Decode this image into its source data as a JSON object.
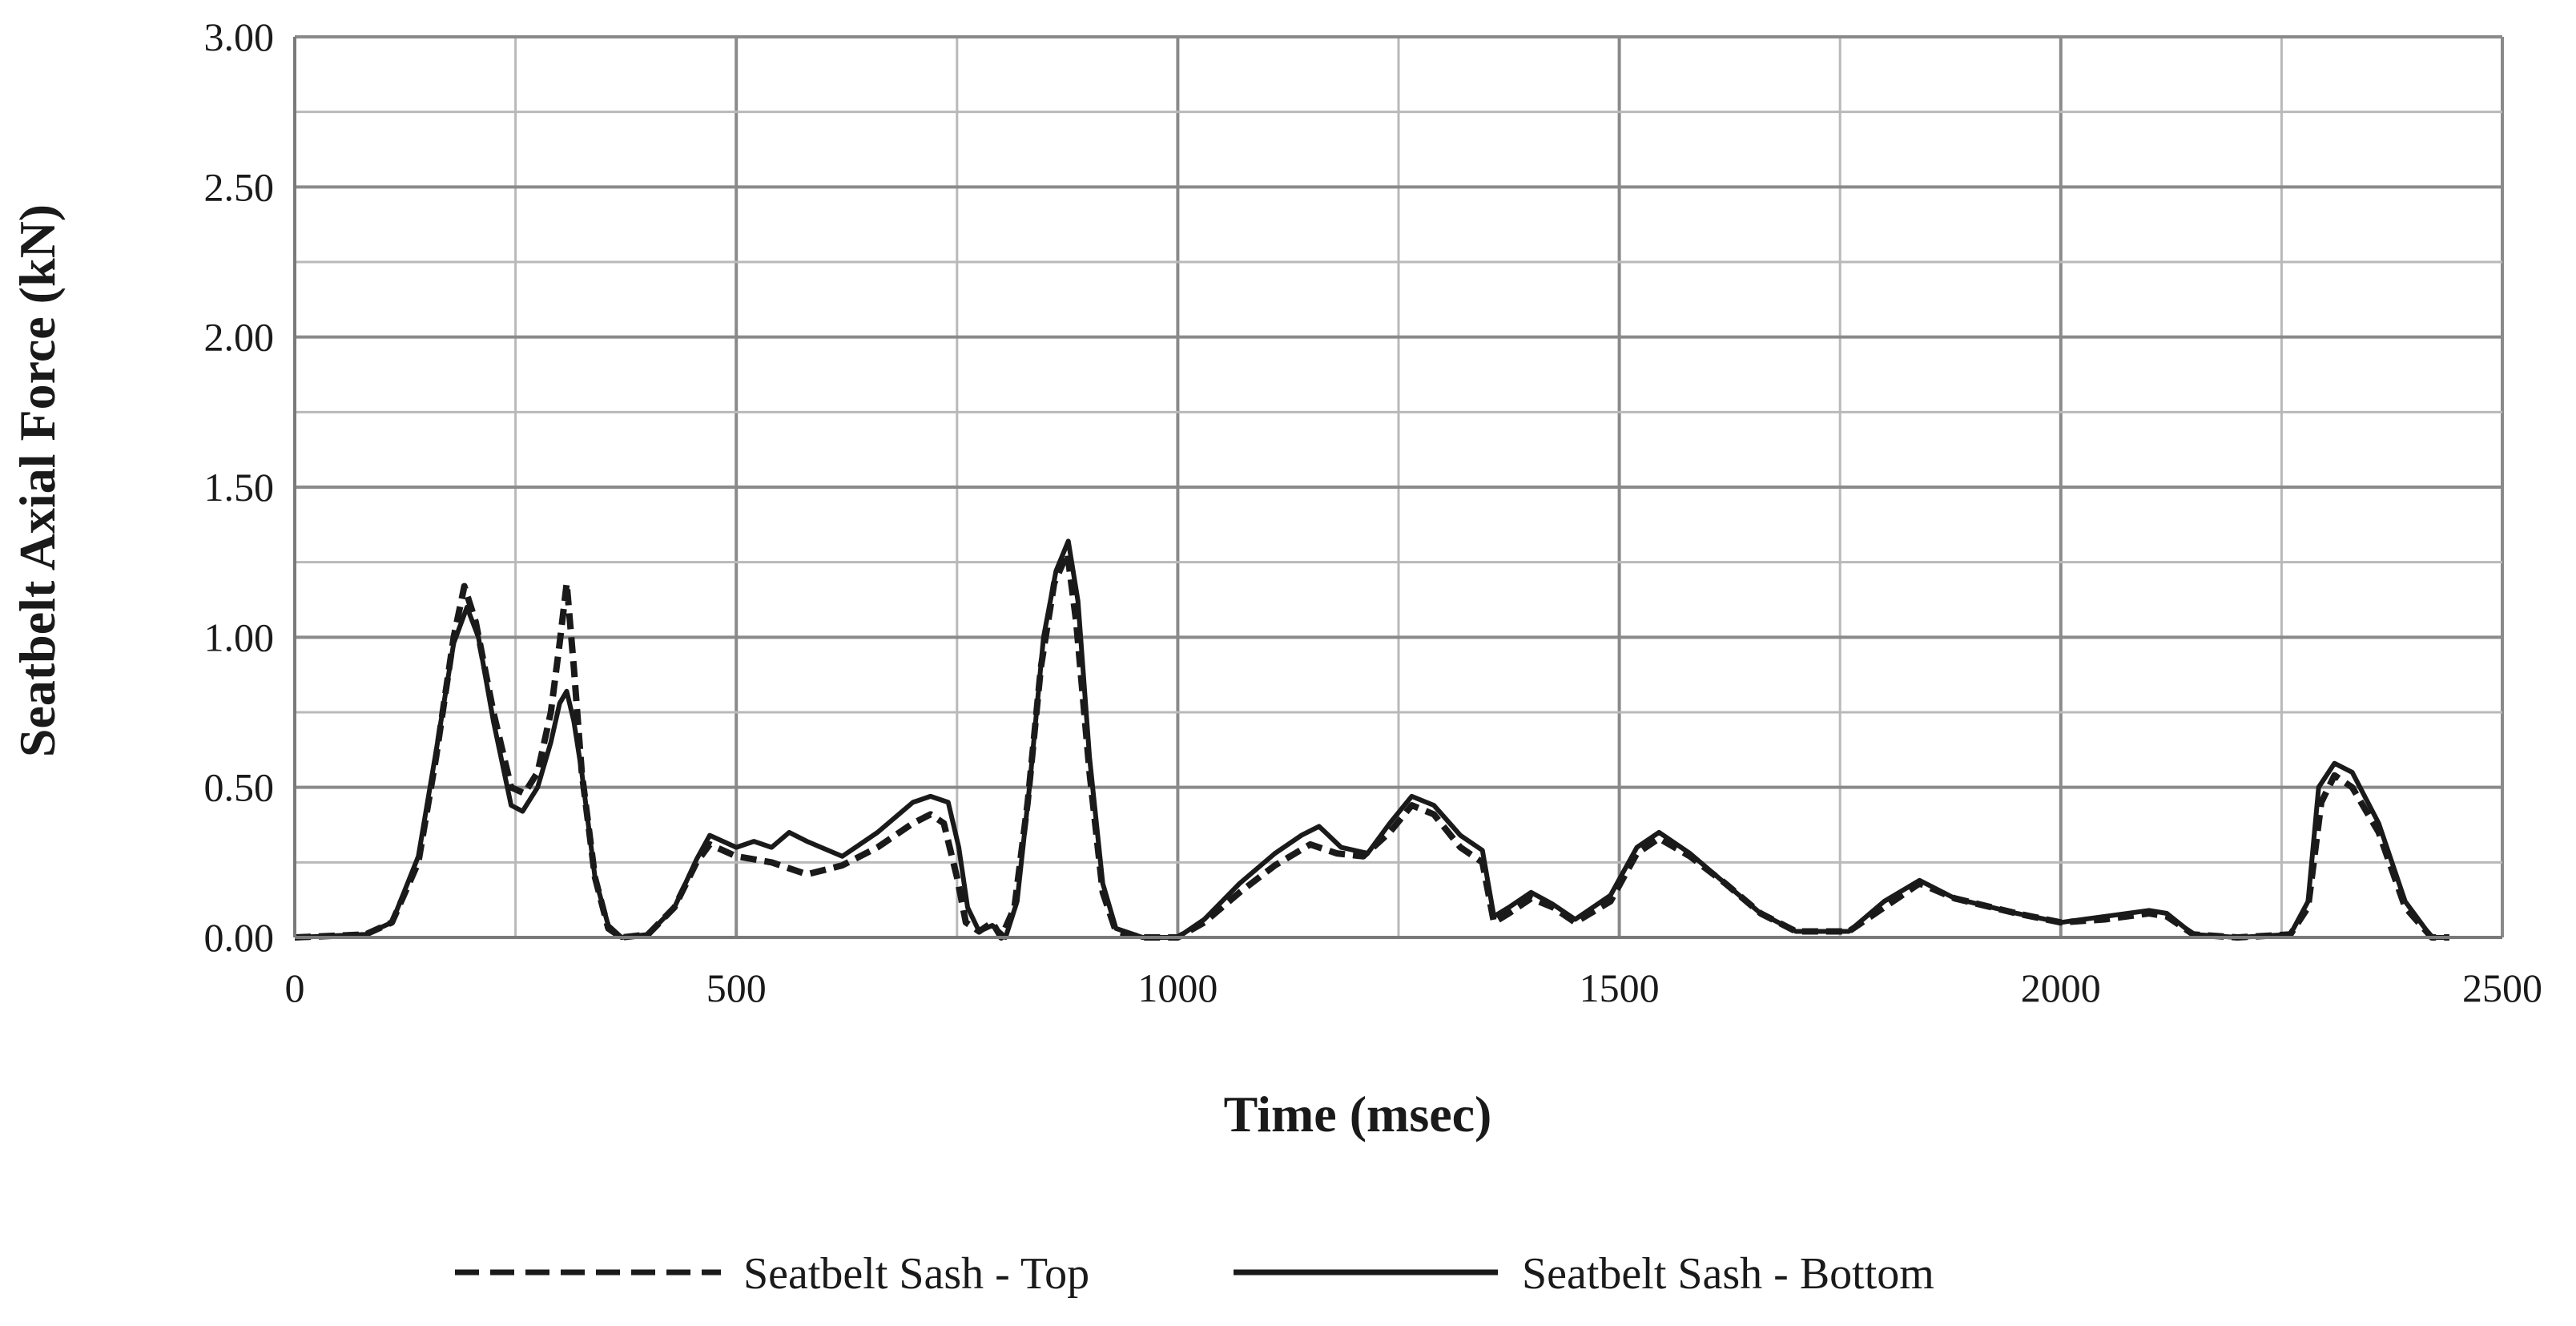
{
  "chart_data": {
    "type": "line",
    "title": "",
    "xlabel": "Time (msec)",
    "ylabel": "Seatbelt Axial Force (kN)",
    "xlim": [
      0,
      2500
    ],
    "ylim": [
      0,
      3.0
    ],
    "x_ticks": [
      0,
      500,
      1000,
      1500,
      2000,
      2500
    ],
    "x_tick_labels": [
      "0",
      "500",
      "1000",
      "1500",
      "2000",
      "2500"
    ],
    "y_ticks": [
      0,
      0.5,
      1.0,
      1.5,
      2.0,
      2.5,
      3.0
    ],
    "y_tick_labels": [
      "0.00",
      "0.50",
      "1.00",
      "1.50",
      "2.00",
      "2.50",
      "3.00"
    ],
    "grid": true,
    "minor_gridlines": true,
    "legend_position": "bottom",
    "series": [
      {
        "name": "Seatbelt Sash - Top",
        "line_style": "dashed",
        "color": "#1a1a1a",
        "points": [
          [
            0,
            0
          ],
          [
            80,
            0.01
          ],
          [
            110,
            0.05
          ],
          [
            140,
            0.25
          ],
          [
            160,
            0.6
          ],
          [
            180,
            1.0
          ],
          [
            192,
            1.17
          ],
          [
            205,
            1.05
          ],
          [
            225,
            0.75
          ],
          [
            245,
            0.5
          ],
          [
            260,
            0.48
          ],
          [
            275,
            0.55
          ],
          [
            290,
            0.75
          ],
          [
            300,
            0.98
          ],
          [
            308,
            1.18
          ],
          [
            316,
            0.9
          ],
          [
            325,
            0.55
          ],
          [
            340,
            0.2
          ],
          [
            355,
            0.03
          ],
          [
            370,
            0.0
          ],
          [
            400,
            0.01
          ],
          [
            430,
            0.1
          ],
          [
            455,
            0.25
          ],
          [
            470,
            0.31
          ],
          [
            500,
            0.27
          ],
          [
            540,
            0.25
          ],
          [
            580,
            0.21
          ],
          [
            620,
            0.24
          ],
          [
            660,
            0.3
          ],
          [
            700,
            0.38
          ],
          [
            720,
            0.41
          ],
          [
            735,
            0.38
          ],
          [
            750,
            0.2
          ],
          [
            760,
            0.05
          ],
          [
            775,
            0.02
          ],
          [
            790,
            0.05
          ],
          [
            800,
            0.0
          ],
          [
            815,
            0.1
          ],
          [
            830,
            0.45
          ],
          [
            845,
            0.9
          ],
          [
            860,
            1.18
          ],
          [
            875,
            1.28
          ],
          [
            885,
            1.05
          ],
          [
            900,
            0.55
          ],
          [
            915,
            0.15
          ],
          [
            930,
            0.02
          ],
          [
            960,
            0.0
          ],
          [
            1000,
            0.0
          ],
          [
            1030,
            0.05
          ],
          [
            1070,
            0.15
          ],
          [
            1110,
            0.24
          ],
          [
            1150,
            0.31
          ],
          [
            1180,
            0.28
          ],
          [
            1210,
            0.27
          ],
          [
            1240,
            0.35
          ],
          [
            1265,
            0.44
          ],
          [
            1290,
            0.41
          ],
          [
            1320,
            0.3
          ],
          [
            1345,
            0.25
          ],
          [
            1358,
            0.05
          ],
          [
            1375,
            0.08
          ],
          [
            1400,
            0.13
          ],
          [
            1425,
            0.1
          ],
          [
            1450,
            0.05
          ],
          [
            1490,
            0.12
          ],
          [
            1520,
            0.28
          ],
          [
            1545,
            0.33
          ],
          [
            1580,
            0.27
          ],
          [
            1620,
            0.18
          ],
          [
            1660,
            0.08
          ],
          [
            1700,
            0.02
          ],
          [
            1760,
            0.02
          ],
          [
            1800,
            0.1
          ],
          [
            1840,
            0.18
          ],
          [
            1880,
            0.13
          ],
          [
            1950,
            0.08
          ],
          [
            2000,
            0.05
          ],
          [
            2050,
            0.06
          ],
          [
            2100,
            0.08
          ],
          [
            2120,
            0.07
          ],
          [
            2150,
            0.01
          ],
          [
            2200,
            0.0
          ],
          [
            2260,
            0.01
          ],
          [
            2280,
            0.1
          ],
          [
            2295,
            0.45
          ],
          [
            2310,
            0.54
          ],
          [
            2330,
            0.5
          ],
          [
            2360,
            0.35
          ],
          [
            2390,
            0.1
          ],
          [
            2420,
            0.0
          ],
          [
            2440,
            0.0
          ]
        ]
      },
      {
        "name": "Seatbelt Sash - Bottom",
        "line_style": "solid",
        "color": "#1a1a1a",
        "points": [
          [
            0,
            0
          ],
          [
            80,
            0.01
          ],
          [
            110,
            0.05
          ],
          [
            140,
            0.27
          ],
          [
            160,
            0.62
          ],
          [
            180,
            0.98
          ],
          [
            195,
            1.1
          ],
          [
            208,
            1.0
          ],
          [
            225,
            0.72
          ],
          [
            245,
            0.44
          ],
          [
            258,
            0.42
          ],
          [
            275,
            0.5
          ],
          [
            290,
            0.65
          ],
          [
            300,
            0.78
          ],
          [
            308,
            0.82
          ],
          [
            316,
            0.72
          ],
          [
            325,
            0.55
          ],
          [
            340,
            0.2
          ],
          [
            355,
            0.04
          ],
          [
            370,
            0.0
          ],
          [
            400,
            0.01
          ],
          [
            430,
            0.1
          ],
          [
            455,
            0.26
          ],
          [
            470,
            0.34
          ],
          [
            500,
            0.3
          ],
          [
            520,
            0.32
          ],
          [
            540,
            0.3
          ],
          [
            560,
            0.35
          ],
          [
            580,
            0.32
          ],
          [
            620,
            0.27
          ],
          [
            660,
            0.35
          ],
          [
            700,
            0.45
          ],
          [
            720,
            0.47
          ],
          [
            740,
            0.45
          ],
          [
            752,
            0.3
          ],
          [
            762,
            0.1
          ],
          [
            775,
            0.02
          ],
          [
            790,
            0.04
          ],
          [
            805,
            0.0
          ],
          [
            818,
            0.12
          ],
          [
            832,
            0.5
          ],
          [
            848,
            1.0
          ],
          [
            862,
            1.22
          ],
          [
            876,
            1.32
          ],
          [
            887,
            1.12
          ],
          [
            900,
            0.6
          ],
          [
            915,
            0.18
          ],
          [
            930,
            0.03
          ],
          [
            960,
            0.0
          ],
          [
            1000,
            0.0
          ],
          [
            1030,
            0.06
          ],
          [
            1070,
            0.18
          ],
          [
            1110,
            0.28
          ],
          [
            1140,
            0.34
          ],
          [
            1160,
            0.37
          ],
          [
            1185,
            0.3
          ],
          [
            1215,
            0.28
          ],
          [
            1240,
            0.38
          ],
          [
            1265,
            0.47
          ],
          [
            1290,
            0.44
          ],
          [
            1320,
            0.34
          ],
          [
            1345,
            0.29
          ],
          [
            1358,
            0.07
          ],
          [
            1375,
            0.1
          ],
          [
            1400,
            0.15
          ],
          [
            1425,
            0.11
          ],
          [
            1450,
            0.06
          ],
          [
            1490,
            0.14
          ],
          [
            1520,
            0.3
          ],
          [
            1545,
            0.35
          ],
          [
            1580,
            0.28
          ],
          [
            1620,
            0.18
          ],
          [
            1660,
            0.08
          ],
          [
            1700,
            0.02
          ],
          [
            1760,
            0.02
          ],
          [
            1800,
            0.12
          ],
          [
            1840,
            0.19
          ],
          [
            1880,
            0.13
          ],
          [
            1950,
            0.08
          ],
          [
            2000,
            0.05
          ],
          [
            2050,
            0.07
          ],
          [
            2100,
            0.09
          ],
          [
            2120,
            0.08
          ],
          [
            2150,
            0.01
          ],
          [
            2200,
            0.0
          ],
          [
            2260,
            0.01
          ],
          [
            2280,
            0.12
          ],
          [
            2292,
            0.5
          ],
          [
            2310,
            0.58
          ],
          [
            2330,
            0.55
          ],
          [
            2360,
            0.38
          ],
          [
            2390,
            0.12
          ],
          [
            2420,
            0.0
          ],
          [
            2440,
            0.0
          ]
        ]
      }
    ]
  }
}
